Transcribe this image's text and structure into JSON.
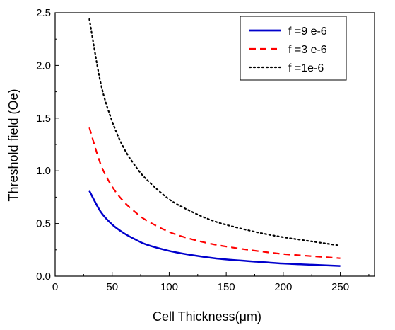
{
  "chart_data": {
    "type": "line",
    "title": "",
    "xlabel": "Cell Thickness(μm)",
    "ylabel": "Threshold field (Oe)",
    "xlim": [
      0,
      280
    ],
    "ylim": [
      0,
      2.5
    ],
    "xticks": [
      0,
      50,
      100,
      150,
      200,
      250
    ],
    "yticks": [
      0.0,
      0.5,
      1.0,
      1.5,
      2.0,
      2.5
    ],
    "xtick_labels": [
      "0",
      "50",
      "100",
      "150",
      "200",
      "250"
    ],
    "ytick_labels": [
      "0.0",
      "0.5",
      "1.0",
      "1.5",
      "2.0",
      "2.5"
    ],
    "grid": false,
    "legend_position": "top-right",
    "series": [
      {
        "name": "f =9 e-6",
        "color": "#0000cc",
        "style": "solid",
        "x": [
          30,
          40,
          50,
          60,
          70,
          80,
          100,
          120,
          140,
          160,
          180,
          200,
          225,
          250
        ],
        "y": [
          0.81,
          0.61,
          0.49,
          0.41,
          0.35,
          0.3,
          0.24,
          0.2,
          0.17,
          0.15,
          0.135,
          0.12,
          0.108,
          0.097
        ]
      },
      {
        "name": "f =3 e-6",
        "color": "#ff0000",
        "style": "dashed",
        "x": [
          30,
          40,
          50,
          60,
          70,
          80,
          100,
          120,
          140,
          160,
          180,
          200,
          225,
          250
        ],
        "y": [
          1.41,
          1.06,
          0.85,
          0.71,
          0.61,
          0.53,
          0.42,
          0.35,
          0.3,
          0.265,
          0.235,
          0.21,
          0.19,
          0.17
        ]
      },
      {
        "name": "f =1e-6",
        "color": "#000000",
        "style": "dotted",
        "x": [
          30,
          40,
          50,
          60,
          70,
          80,
          100,
          120,
          140,
          160,
          180,
          200,
          225,
          250
        ],
        "y": [
          2.44,
          1.83,
          1.47,
          1.22,
          1.05,
          0.92,
          0.73,
          0.61,
          0.52,
          0.46,
          0.41,
          0.37,
          0.33,
          0.29
        ]
      }
    ]
  }
}
